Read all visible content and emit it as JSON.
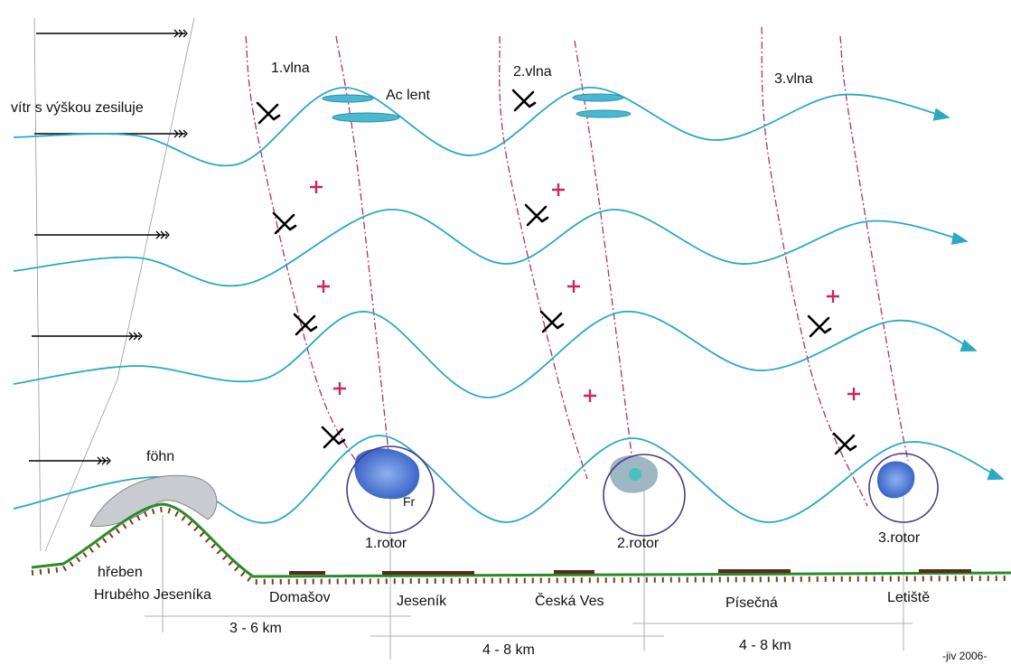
{
  "wind_label": "vítr s výškou zesiluje",
  "waves": [
    "1.vlna",
    "2.vlna",
    "3.vlna"
  ],
  "cloud_label": "Ac lent",
  "foehn_label": "föhn",
  "rotor_cloud_label": "Fr",
  "rotors": [
    "1.rotor",
    "2.rotor",
    "3.rotor"
  ],
  "ridge_label": [
    "hřeben",
    "Hrubého Jeseníka"
  ],
  "places": [
    "Domašov",
    "Jeseník",
    "Česká Ves",
    "Písečná",
    "Letiště"
  ],
  "distances": [
    "3 - 6 km",
    "4 - 8 km",
    "4 - 8 km"
  ],
  "credit": "-jiv 2006-"
}
